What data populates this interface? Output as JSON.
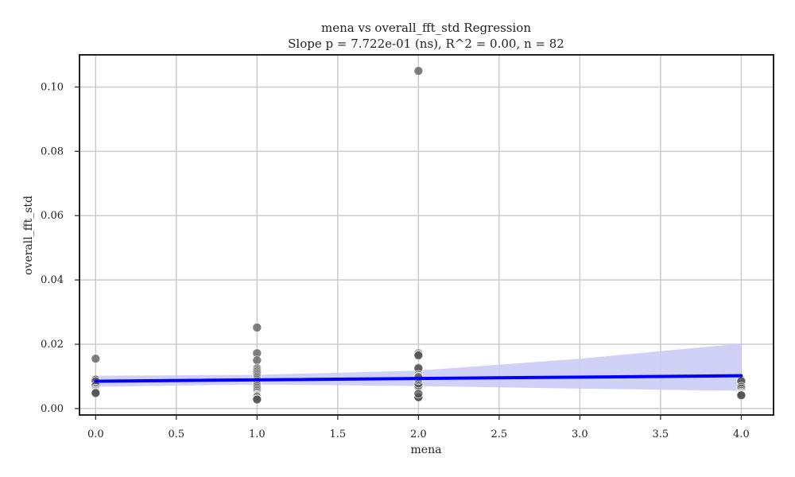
{
  "chart_data": {
    "type": "scatter",
    "title": "mena vs overall_fft_std Regression",
    "subtitle": "Slope p = 7.722e-01 (ns), R^2 = 0.00, n = 82",
    "xlabel": "mena",
    "ylabel": "overall_fft_std",
    "xlim": [
      -0.1,
      4.2
    ],
    "ylim": [
      -0.002,
      0.11
    ],
    "x_ticks": [
      "0.0",
      "0.5",
      "1.0",
      "1.5",
      "2.0",
      "2.5",
      "3.0",
      "3.5",
      "4.0"
    ],
    "y_ticks": [
      "0.00",
      "0.02",
      "0.04",
      "0.06",
      "0.08",
      "0.10"
    ],
    "grid": true,
    "colors": {
      "points": "#555555",
      "line": "#0000ff",
      "band": "#c9c9f7"
    },
    "points": [
      [
        0,
        0.0155
      ],
      [
        0,
        0.009
      ],
      [
        0,
        0.0085
      ],
      [
        0,
        0.0072
      ],
      [
        0,
        0.0062
      ],
      [
        0,
        0.0058
      ],
      [
        0,
        0.0055
      ],
      [
        0,
        0.0052
      ],
      [
        0,
        0.005
      ],
      [
        0,
        0.0048
      ],
      [
        1,
        0.0252
      ],
      [
        1,
        0.0172
      ],
      [
        1,
        0.015
      ],
      [
        1,
        0.0125
      ],
      [
        1,
        0.012
      ],
      [
        1,
        0.0115
      ],
      [
        1,
        0.011
      ],
      [
        1,
        0.0105
      ],
      [
        1,
        0.01
      ],
      [
        1,
        0.0095
      ],
      [
        1,
        0.009
      ],
      [
        1,
        0.0085
      ],
      [
        1,
        0.008
      ],
      [
        1,
        0.0075
      ],
      [
        1,
        0.007
      ],
      [
        1,
        0.0065
      ],
      [
        1,
        0.006
      ],
      [
        1,
        0.0055
      ],
      [
        1,
        0.005
      ],
      [
        1,
        0.0045
      ],
      [
        1,
        0.0042
      ],
      [
        1,
        0.004
      ],
      [
        1,
        0.0038
      ],
      [
        1,
        0.0035
      ],
      [
        1,
        0.003
      ],
      [
        1,
        0.0028
      ],
      [
        2,
        0.105
      ],
      [
        2,
        0.0172
      ],
      [
        2,
        0.0168
      ],
      [
        2,
        0.0165
      ],
      [
        2,
        0.0128
      ],
      [
        2,
        0.0125
      ],
      [
        2,
        0.0105
      ],
      [
        2,
        0.01
      ],
      [
        2,
        0.0095
      ],
      [
        2,
        0.009
      ],
      [
        2,
        0.0085
      ],
      [
        2,
        0.008
      ],
      [
        2,
        0.0075
      ],
      [
        2,
        0.007
      ],
      [
        2,
        0.0068
      ],
      [
        2,
        0.0065
      ],
      [
        2,
        0.0062
      ],
      [
        2,
        0.006
      ],
      [
        2,
        0.0058
      ],
      [
        2,
        0.0055
      ],
      [
        2,
        0.0052
      ],
      [
        2,
        0.005
      ],
      [
        2,
        0.0048
      ],
      [
        2,
        0.0045
      ],
      [
        2,
        0.0042
      ],
      [
        2,
        0.004
      ],
      [
        2,
        0.0038
      ],
      [
        2,
        0.0036
      ],
      [
        2,
        0.0035
      ],
      [
        2,
        0.0068
      ],
      [
        2,
        0.0072
      ],
      [
        2,
        0.0078
      ],
      [
        2,
        0.0088
      ],
      [
        2,
        0.0092
      ],
      [
        2,
        0.0098
      ],
      [
        2,
        0.0046
      ],
      [
        4,
        0.0088
      ],
      [
        4,
        0.0085
      ],
      [
        4,
        0.0068
      ],
      [
        4,
        0.0062
      ],
      [
        4,
        0.0055
      ],
      [
        4,
        0.005
      ],
      [
        4,
        0.0047
      ],
      [
        4,
        0.0045
      ],
      [
        4,
        0.0043
      ],
      [
        4,
        0.0041
      ]
    ],
    "regression": {
      "line": [
        [
          0,
          0.0085
        ],
        [
          4,
          0.0102
        ]
      ],
      "ci_upper": [
        [
          0,
          0.0102
        ],
        [
          1,
          0.0105
        ],
        [
          2,
          0.0118
        ],
        [
          3,
          0.0155
        ],
        [
          4,
          0.0202
        ]
      ],
      "ci_lower": [
        [
          0,
          0.0068
        ],
        [
          1,
          0.0075
        ],
        [
          2,
          0.007
        ],
        [
          3,
          0.0062
        ],
        [
          4,
          0.0055
        ]
      ]
    }
  }
}
